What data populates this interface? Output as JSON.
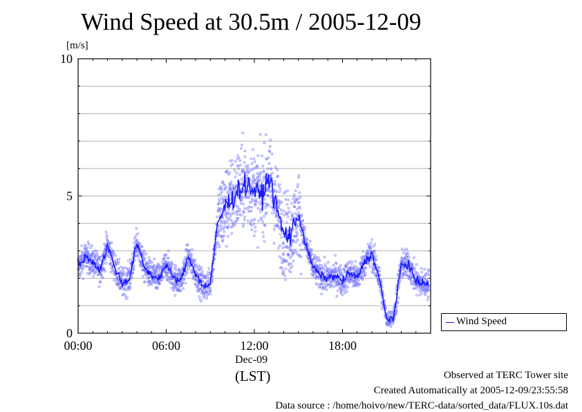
{
  "page": {
    "title": "Wind Speed at 30.5m / 2005-12-09",
    "date_label": "Dec-09",
    "tz_label": "(LST)",
    "footer": {
      "observed": "Observed at TERC Tower site",
      "created": "Created Automatically at 2005-12-09/23:55:58",
      "source": "Data source : /home/hoivo/new/TERC-data/sorted_data/FLUX.10s.dat"
    }
  },
  "chart_data": {
    "type": "scatter",
    "title": "Wind Speed at 30.5m / 2005-12-09",
    "ylabel": "[m/s]",
    "xlabel": "(LST)",
    "ylim": [
      0,
      10
    ],
    "xlim_hours": [
      0,
      24
    ],
    "y_ticks": [
      "0",
      "5",
      "10"
    ],
    "x_ticks": [
      "00:00",
      "06:00",
      "12:00",
      "18:00"
    ],
    "grid": "horizontal",
    "legend": {
      "placement": "right",
      "entries": [
        "Wind Speed"
      ]
    },
    "colors": {
      "points": "#7f7fff",
      "line": "#1a1aff"
    },
    "series": [
      {
        "name": "Wind Speed",
        "hour": [
          0,
          0.5,
          1,
          1.5,
          2,
          2.5,
          3,
          3.5,
          4,
          4.5,
          5,
          5.5,
          6,
          6.5,
          7,
          7.5,
          8,
          8.5,
          9,
          9.5,
          10,
          10.5,
          11,
          11.5,
          12,
          12.5,
          13,
          13.5,
          14,
          14.5,
          15,
          15.5,
          16,
          16.5,
          17,
          17.5,
          18,
          18.5,
          19,
          19.5,
          20,
          20.5,
          21,
          21.5,
          22,
          22.5,
          23,
          23.5
        ],
        "mean_speed": [
          2.4,
          2.8,
          2.6,
          2.3,
          3.2,
          2.4,
          1.8,
          2.0,
          3.3,
          2.4,
          2.1,
          2.0,
          2.5,
          2.0,
          1.9,
          2.8,
          2.2,
          1.7,
          1.8,
          4.0,
          4.6,
          4.9,
          5.3,
          5.4,
          5.2,
          5.0,
          5.7,
          4.6,
          3.6,
          3.6,
          4.4,
          3.2,
          2.4,
          2.1,
          2.0,
          2.1,
          1.9,
          2.2,
          2.0,
          2.6,
          2.9,
          2.0,
          0.5,
          0.6,
          2.5,
          2.5,
          1.9,
          1.8
        ]
      }
    ]
  }
}
